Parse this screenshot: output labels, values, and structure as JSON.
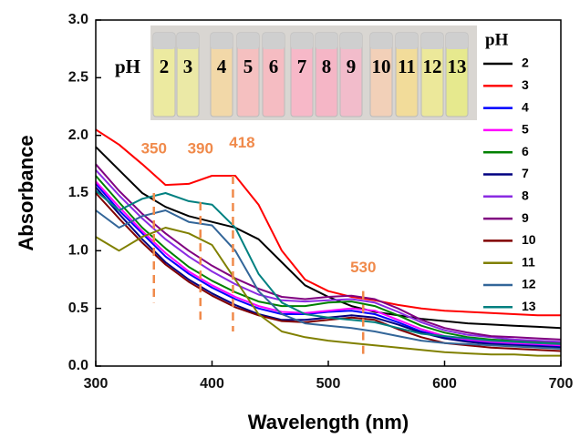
{
  "chart_data": {
    "type": "line",
    "xlabel": "Wavelength (nm)",
    "ylabel": "Absorbance",
    "x": [
      300,
      320,
      340,
      360,
      380,
      400,
      420,
      440,
      460,
      480,
      500,
      520,
      540,
      560,
      580,
      600,
      620,
      640,
      660,
      680,
      700
    ],
    "xlim": [
      300,
      700
    ],
    "xticks": [
      300,
      400,
      500,
      600,
      700
    ],
    "ylim": [
      0,
      3
    ],
    "yticks": [
      {
        "value": 0,
        "label": "0.0"
      },
      {
        "value": 0.5,
        "label": "0.5"
      },
      {
        "value": 1,
        "label": "1.0"
      },
      {
        "value": 1.5,
        "label": "1.5"
      },
      {
        "value": 2,
        "label": "2.0"
      },
      {
        "value": 2.5,
        "label": "2.5"
      },
      {
        "value": 3,
        "label": "3.0"
      }
    ],
    "legend_title": "pH",
    "legend": "right",
    "annotations": [
      350,
      390,
      418,
      530
    ],
    "annotation_color": "#f08a4b",
    "inset": {
      "title": "pH",
      "labels": [
        "2",
        "3",
        "4",
        "5",
        "6",
        "7",
        "8",
        "9",
        "10",
        "11",
        "12",
        "13"
      ]
    },
    "series": [
      {
        "name": "2",
        "color": "#000000",
        "values": [
          1.9,
          1.7,
          1.5,
          1.38,
          1.3,
          1.25,
          1.2,
          1.1,
          0.9,
          0.7,
          0.6,
          0.52,
          0.47,
          0.44,
          0.41,
          0.39,
          0.37,
          0.36,
          0.35,
          0.34,
          0.33
        ]
      },
      {
        "name": "3",
        "color": "#ff0000",
        "values": [
          2.05,
          1.92,
          1.75,
          1.57,
          1.58,
          1.65,
          1.65,
          1.4,
          1.0,
          0.75,
          0.65,
          0.6,
          0.57,
          0.53,
          0.5,
          0.48,
          0.47,
          0.46,
          0.45,
          0.44,
          0.44
        ]
      },
      {
        "name": "4",
        "color": "#0000ff",
        "values": [
          1.58,
          1.35,
          1.15,
          0.95,
          0.8,
          0.68,
          0.58,
          0.5,
          0.45,
          0.45,
          0.47,
          0.48,
          0.45,
          0.38,
          0.3,
          0.25,
          0.22,
          0.2,
          0.19,
          0.18,
          0.17
        ]
      },
      {
        "name": "5",
        "color": "#ff00ff",
        "values": [
          1.6,
          1.38,
          1.17,
          0.98,
          0.82,
          0.7,
          0.6,
          0.52,
          0.47,
          0.46,
          0.48,
          0.5,
          0.48,
          0.4,
          0.32,
          0.26,
          0.23,
          0.21,
          0.2,
          0.19,
          0.18
        ]
      },
      {
        "name": "6",
        "color": "#008000",
        "values": [
          1.65,
          1.42,
          1.2,
          1.02,
          0.86,
          0.74,
          0.64,
          0.56,
          0.52,
          0.52,
          0.55,
          0.56,
          0.52,
          0.44,
          0.35,
          0.29,
          0.25,
          0.23,
          0.22,
          0.21,
          0.2
        ]
      },
      {
        "name": "7",
        "color": "#000080",
        "values": [
          1.55,
          1.32,
          1.1,
          0.9,
          0.75,
          0.63,
          0.53,
          0.45,
          0.4,
          0.4,
          0.42,
          0.44,
          0.42,
          0.36,
          0.29,
          0.24,
          0.21,
          0.19,
          0.18,
          0.17,
          0.16
        ]
      },
      {
        "name": "8",
        "color": "#8a2be2",
        "values": [
          1.7,
          1.48,
          1.28,
          1.1,
          0.95,
          0.82,
          0.71,
          0.62,
          0.57,
          0.56,
          0.57,
          0.58,
          0.55,
          0.47,
          0.38,
          0.31,
          0.27,
          0.25,
          0.23,
          0.22,
          0.21
        ]
      },
      {
        "name": "9",
        "color": "#800080",
        "values": [
          1.75,
          1.52,
          1.32,
          1.15,
          1.0,
          0.87,
          0.76,
          0.67,
          0.6,
          0.58,
          0.6,
          0.61,
          0.58,
          0.5,
          0.4,
          0.33,
          0.29,
          0.26,
          0.25,
          0.24,
          0.23
        ]
      },
      {
        "name": "10",
        "color": "#800000",
        "values": [
          1.5,
          1.28,
          1.07,
          0.88,
          0.73,
          0.61,
          0.51,
          0.44,
          0.39,
          0.38,
          0.4,
          0.42,
          0.4,
          0.32,
          0.25,
          0.2,
          0.18,
          0.16,
          0.15,
          0.14,
          0.13
        ]
      },
      {
        "name": "11",
        "color": "#808000",
        "values": [
          1.12,
          1.0,
          1.12,
          1.2,
          1.15,
          1.05,
          0.75,
          0.45,
          0.3,
          0.25,
          0.22,
          0.2,
          0.18,
          0.16,
          0.14,
          0.12,
          0.11,
          0.1,
          0.1,
          0.09,
          0.09
        ]
      },
      {
        "name": "12",
        "color": "#336699",
        "values": [
          1.35,
          1.2,
          1.3,
          1.35,
          1.25,
          1.22,
          1.0,
          0.65,
          0.45,
          0.37,
          0.35,
          0.33,
          0.3,
          0.26,
          0.22,
          0.2,
          0.19,
          0.18,
          0.17,
          0.16,
          0.15
        ]
      },
      {
        "name": "13",
        "color": "#008080",
        "values": [
          1.52,
          1.35,
          1.45,
          1.5,
          1.43,
          1.4,
          1.2,
          0.8,
          0.55,
          0.45,
          0.42,
          0.4,
          0.38,
          0.33,
          0.28,
          0.26,
          0.24,
          0.22,
          0.21,
          0.2,
          0.19
        ]
      }
    ]
  }
}
